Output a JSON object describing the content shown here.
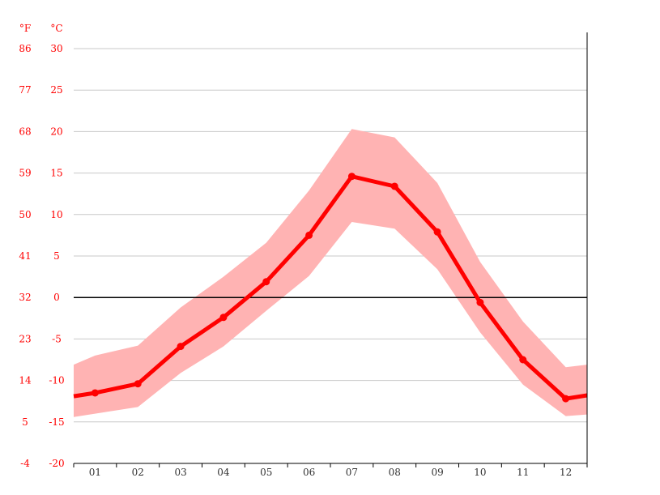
{
  "chart_data": {
    "type": "line",
    "title": "",
    "xlabel": "",
    "ylabel": "",
    "unit_fahrenheit": "°F",
    "unit_celsius": "°C",
    "categories": [
      "01",
      "02",
      "03",
      "04",
      "05",
      "06",
      "07",
      "08",
      "09",
      "10",
      "11",
      "12"
    ],
    "ylim": [
      -20,
      30
    ],
    "y_ticks_c": [
      "30",
      "25",
      "20",
      "15",
      "10",
      "5",
      "0",
      "-5",
      "-10",
      "-15",
      "-20"
    ],
    "y_ticks_f": [
      "86",
      "77",
      "68",
      "59",
      "50",
      "41",
      "32",
      "23",
      "14",
      "5",
      "-4"
    ],
    "grid": true,
    "series": [
      {
        "values": [
          -11.5,
          -10.4,
          -5.9,
          -2.4,
          1.9,
          7.5,
          14.6,
          13.4,
          7.9,
          -0.6,
          -7.5,
          -12.2
        ],
        "color": "#ff0000"
      }
    ],
    "range_band": {
      "color": "#ffb3b3",
      "min": [
        -14.0,
        -13.2,
        -9.1,
        -5.9,
        -1.6,
        2.6,
        9.1,
        8.3,
        3.4,
        -4.2,
        -10.5,
        -14.3
      ],
      "max": [
        -7.0,
        -5.8,
        -1.2,
        2.5,
        6.6,
        12.9,
        20.3,
        19.3,
        13.8,
        4.3,
        -2.9,
        -8.4
      ]
    },
    "edge_values": {
      "start": -11.9,
      "end": -11.8,
      "band_min_start": -14.4,
      "band_min_end": -14.1,
      "band_max_start": -8.1,
      "band_max_end": -8.1
    },
    "zero_line_color": "#000000",
    "grid_color": "#c8c8c8"
  }
}
